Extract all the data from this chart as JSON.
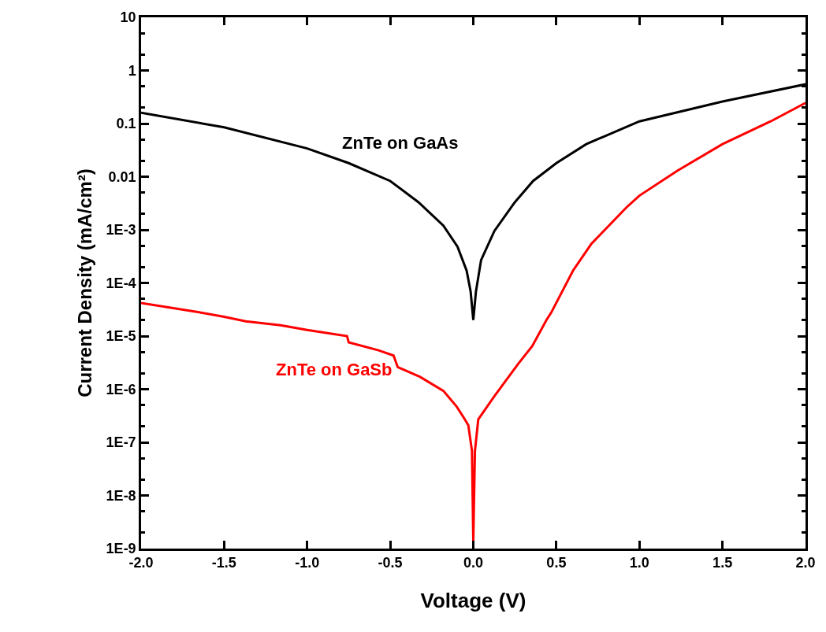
{
  "chart_data": {
    "type": "line",
    "xlabel": "Voltage (V)",
    "ylabel": "Current Density (mA/cm²)",
    "log": "y",
    "xlim": [
      -2.0,
      2.0
    ],
    "xticks": [
      {
        "value": -2,
        "label": "-2.0"
      },
      {
        "value": -1.5,
        "label": "-1.5"
      },
      {
        "value": -1,
        "label": "-1.0"
      },
      {
        "value": -0.5,
        "label": "-0.5"
      },
      {
        "value": 0,
        "label": "0.0"
      },
      {
        "value": 0.5,
        "label": "0.5"
      },
      {
        "value": 1,
        "label": "1.0"
      },
      {
        "value": 1.5,
        "label": "1.5"
      },
      {
        "value": 2,
        "label": "2.0"
      }
    ],
    "ylim": [
      1e-09,
      10
    ],
    "yticks": [
      {
        "value": 1e-09,
        "label": "1E-9"
      },
      {
        "value": 1e-08,
        "label": "1E-8"
      },
      {
        "value": 1e-07,
        "label": "1E-7"
      },
      {
        "value": 1e-06,
        "label": "1E-6"
      },
      {
        "value": 1e-05,
        "label": "1E-5"
      },
      {
        "value": 0.0001,
        "label": "1E-4"
      },
      {
        "value": 0.001,
        "label": "1E-3"
      },
      0.01,
      0.1,
      1,
      10
    ],
    "legend": false,
    "line_style": "solid",
    "series": [
      {
        "name": "ZnTe on GaAs",
        "color": "#000000",
        "x": [
          -2.0,
          -1.5,
          -1.0,
          -0.75,
          -0.5,
          -0.33,
          -0.18,
          -0.095,
          -0.04,
          -0.016,
          0,
          0.016,
          0.047,
          0.127,
          0.25,
          0.36,
          0.5,
          0.68,
          1.0,
          1.5,
          2.0
        ],
        "values": [
          0.16,
          0.085,
          0.034,
          0.018,
          0.0083,
          0.0033,
          0.0012,
          0.00048,
          0.00017,
          6.9e-05,
          2e-05,
          6.9e-05,
          0.00027,
          0.00095,
          0.0033,
          0.0083,
          0.018,
          0.041,
          0.11,
          0.26,
          0.55
        ]
      },
      {
        "name": "ZnTe on GaSb",
        "color": "#ff0000",
        "x": [
          -2.0,
          -1.65,
          -1.5,
          -1.37,
          -1.16,
          -1.0,
          -0.76,
          -0.75,
          -0.57,
          -0.48,
          -0.455,
          -0.32,
          -0.18,
          -0.1,
          -0.06,
          -0.03,
          -0.008,
          0,
          0.01,
          0.03,
          0.127,
          0.27,
          0.355,
          0.44,
          0.47,
          0.6,
          0.71,
          0.92,
          1.0,
          1.23,
          1.5,
          1.79,
          2.0
        ],
        "values": [
          4.2e-05,
          2.8e-05,
          2.3e-05,
          1.9e-05,
          1.6e-05,
          1.3e-05,
          1e-05,
          7.6e-06,
          5.4e-06,
          4.3e-06,
          2.6e-06,
          1.7e-06,
          9.3e-07,
          4.7e-07,
          3e-07,
          2.1e-07,
          6.9e-08,
          1.4e-09,
          6.9e-08,
          2.7e-07,
          7.4e-07,
          3e-06,
          6.5e-06,
          2e-05,
          2.8e-05,
          0.00017,
          0.00054,
          0.0026,
          0.0044,
          0.013,
          0.041,
          0.11,
          0.245
        ]
      }
    ]
  }
}
